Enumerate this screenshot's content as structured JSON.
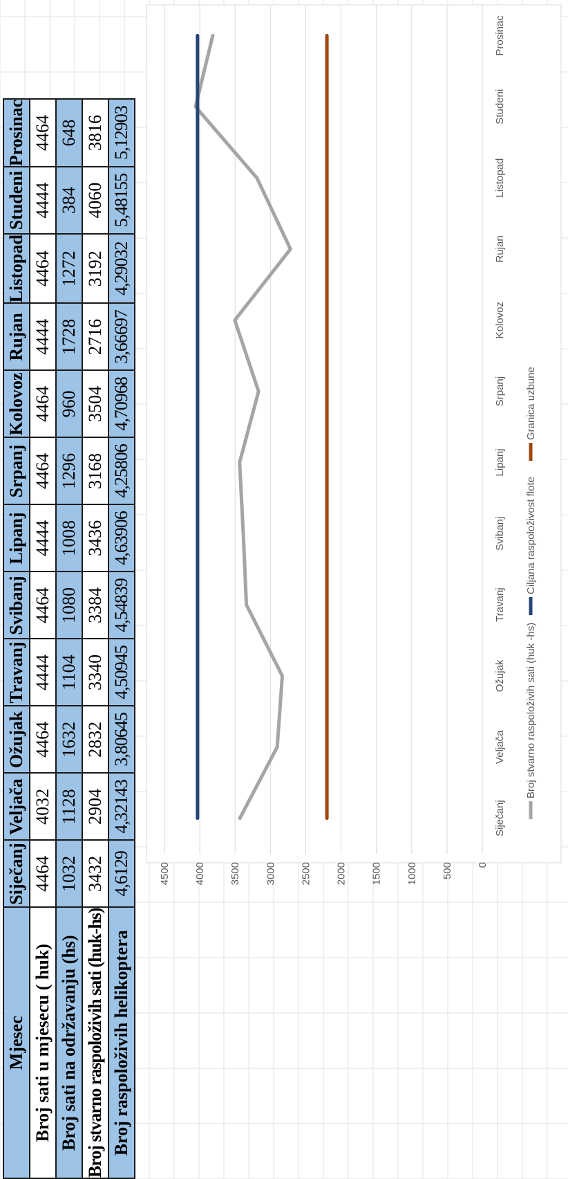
{
  "table": {
    "header_label": "Mjesec",
    "months": [
      "Siječanj",
      "Veljača",
      "Ožujak",
      "Travanj",
      "Svibanj",
      "Lipanj",
      "Srpanj",
      "Kolovoz",
      "Rujan",
      "Listopad",
      "Studeni",
      "Prosinac"
    ],
    "rows": [
      {
        "label": "Broj sati u mjesecu ( huk)",
        "values": [
          "4464",
          "4032",
          "4464",
          "4444",
          "4464",
          "4444",
          "4464",
          "4464",
          "4444",
          "4464",
          "4444",
          "4464"
        ]
      },
      {
        "label": "Broj sati na održavanju (hs)",
        "values": [
          "1032",
          "1128",
          "1632",
          "1104",
          "1080",
          "1008",
          "1296",
          "960",
          "1728",
          "1272",
          "384",
          "648"
        ]
      },
      {
        "label": "Broj stvarno raspoloživih sati (huk-hs)",
        "values": [
          "3432",
          "2904",
          "2832",
          "3340",
          "3384",
          "3436",
          "3168",
          "3504",
          "2716",
          "3192",
          "4060",
          "3816"
        ]
      },
      {
        "label": "Broj raspoloživih helikoptera",
        "values": [
          "4,6129",
          "4,32143",
          "3,80645",
          "4,50945",
          "4,54839",
          "4,63906",
          "4,25806",
          "4,70968",
          "3,66697",
          "4,29032",
          "5,48155",
          "5,12903"
        ]
      }
    ]
  },
  "chart_data": {
    "type": "line",
    "categories": [
      "Siječanj",
      "Veljača",
      "Ožujak",
      "Travanj",
      "Svibanj",
      "Lipanj",
      "Srpanj",
      "Kolovoz",
      "Rujan",
      "Listopad",
      "Studeni",
      "Prosinac"
    ],
    "y_ticks": [
      "0",
      "500",
      "1000",
      "1500",
      "2000",
      "2500",
      "3000",
      "3500",
      "4000",
      "4500"
    ],
    "ylim": [
      0,
      4500
    ],
    "grid": true,
    "legend_position": "bottom",
    "series": [
      {
        "name": "Broj stvarno raspoloživih sati (huk -hs)",
        "color": "#a5a5a5",
        "values": [
          3432,
          2904,
          2832,
          3340,
          3384,
          3436,
          3168,
          3504,
          2716,
          3192,
          4060,
          3816
        ]
      },
      {
        "name": "Ciljana raspoloživost flote",
        "color": "#264478",
        "values": [
          4032,
          4032,
          4032,
          4032,
          4032,
          4032,
          4032,
          4032,
          4032,
          4032,
          4032,
          4032
        ]
      },
      {
        "name": "Granica uzbune",
        "color": "#9e480e",
        "values": [
          2200,
          2200,
          2200,
          2200,
          2200,
          2200,
          2200,
          2200,
          2200,
          2200,
          2200,
          2200
        ]
      }
    ]
  }
}
